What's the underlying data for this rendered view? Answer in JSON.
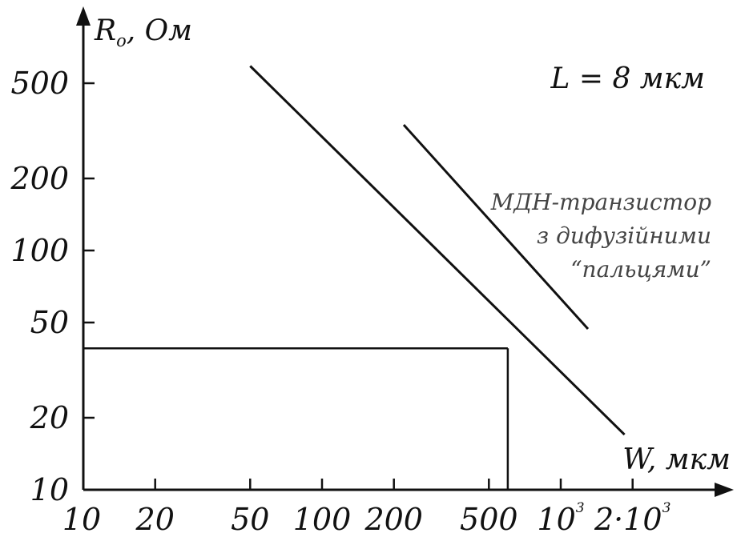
{
  "chart_data": {
    "type": "line",
    "title": "",
    "x_scale": "log",
    "y_scale": "log",
    "xlim": [
      10,
      3200
    ],
    "ylim": [
      10,
      900
    ],
    "grid": false,
    "legend": "none",
    "x_axis_label": {
      "main": "W, мкм"
    },
    "y_axis_label": {
      "main": "R",
      "sub": "о",
      "rest": ", Ом"
    },
    "x_ticks": [
      {
        "value": 10,
        "label": "10"
      },
      {
        "value": 20,
        "label": "20"
      },
      {
        "value": 50,
        "label": "50"
      },
      {
        "value": 100,
        "label": "100"
      },
      {
        "value": 200,
        "label": "200"
      },
      {
        "value": 500,
        "label": "500"
      },
      {
        "value": 1000,
        "label": "10",
        "sup": "3"
      },
      {
        "value": 2000,
        "label": "2·10",
        "sup": "3"
      }
    ],
    "y_ticks": [
      {
        "value": 10,
        "label": "10"
      },
      {
        "value": 20,
        "label": "20"
      },
      {
        "value": 50,
        "label": "50"
      },
      {
        "value": 100,
        "label": "100"
      },
      {
        "value": 200,
        "label": "200"
      },
      {
        "value": 500,
        "label": "500"
      }
    ],
    "series": [
      {
        "x": [
          50,
          1850
        ],
        "y": [
          590,
          17
        ]
      },
      {
        "x": [
          220,
          1300
        ],
        "y": [
          335,
          47
        ]
      }
    ],
    "reference_point": {
      "x": 600,
      "y": 39
    },
    "annotations": [
      {
        "text": "L = 8 мкм"
      },
      {
        "lines": [
          "МДН-транзистор",
          "з дифузійними",
          "“пальцями”"
        ]
      }
    ],
    "colors": {
      "ink": "#111111",
      "annotation": "#444444",
      "background": "#ffffff"
    }
  }
}
